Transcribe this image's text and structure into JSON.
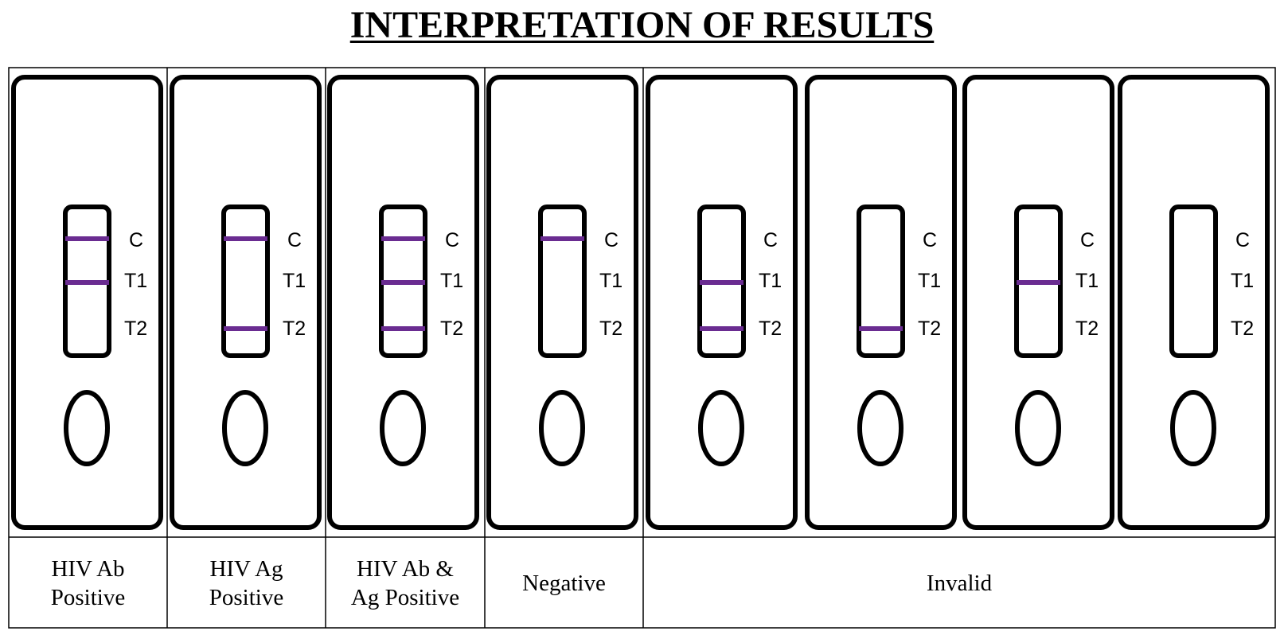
{
  "title": "INTERPRETATION OF RESULTS",
  "colors": {
    "band": "#6a2c91",
    "outline": "#000000"
  },
  "window_labels": [
    "C",
    "T1",
    "T2"
  ],
  "cassettes": [
    {
      "bands": [
        "C",
        "T1"
      ]
    },
    {
      "bands": [
        "C",
        "T2"
      ]
    },
    {
      "bands": [
        "C",
        "T1",
        "T2"
      ]
    },
    {
      "bands": [
        "C"
      ]
    },
    {
      "bands": [
        "T1",
        "T2"
      ]
    },
    {
      "bands": [
        "T2"
      ]
    },
    {
      "bands": [
        "T1"
      ]
    },
    {
      "bands": []
    }
  ],
  "results": [
    {
      "lines": [
        "HIV Ab",
        "Positive"
      ],
      "span": 1
    },
    {
      "lines": [
        "HIV Ag",
        "Positive"
      ],
      "span": 1
    },
    {
      "lines": [
        "HIV Ab &",
        "Ag Positive"
      ],
      "span": 1
    },
    {
      "lines": [
        "Negative"
      ],
      "span": 1
    },
    {
      "lines": [
        "Invalid"
      ],
      "span": 4
    }
  ]
}
